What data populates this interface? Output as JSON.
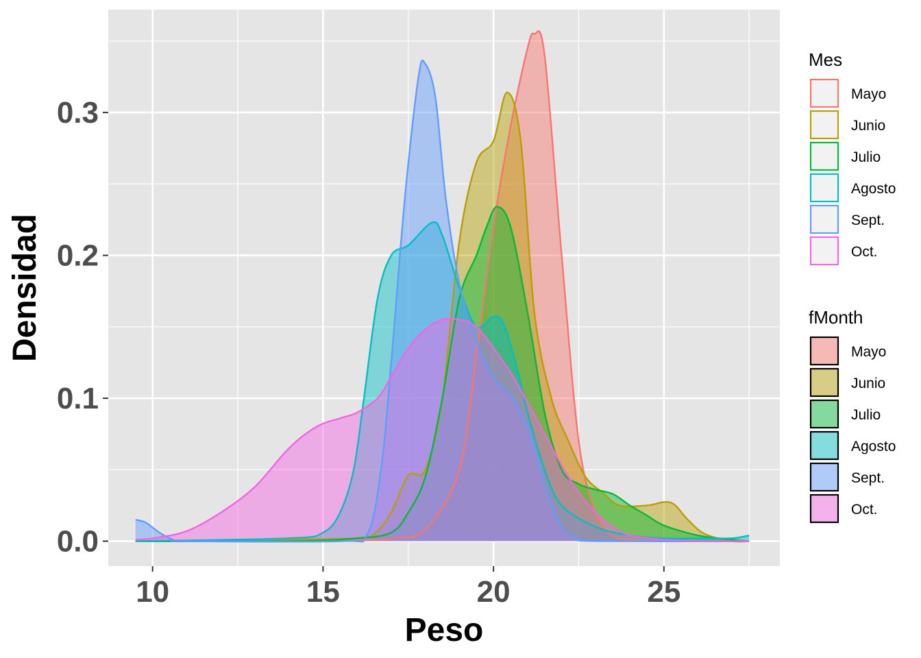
{
  "chart_data": {
    "type": "area",
    "xlabel": "Peso",
    "ylabel": "Densidad",
    "xlim": [
      8.7,
      28.4
    ],
    "ylim": [
      -0.0175,
      0.372
    ],
    "x_ticks": [
      10,
      15,
      20,
      25
    ],
    "x_tick_labels": [
      "10",
      "15",
      "20",
      "25"
    ],
    "y_ticks": [
      0.0,
      0.1,
      0.2,
      0.3
    ],
    "y_tick_labels": [
      "0.0",
      "0.1",
      "0.2",
      "0.3"
    ],
    "grid": true,
    "legend_position": "right",
    "series": [
      {
        "name": "Mayo",
        "color": "#F8766D",
        "points": [
          [
            9.5,
            0
          ],
          [
            13,
            0
          ],
          [
            16,
            0.0005
          ],
          [
            17,
            0.002
          ],
          [
            18,
            0.008
          ],
          [
            19,
            0.05
          ],
          [
            19.5,
            0.13
          ],
          [
            20,
            0.22
          ],
          [
            20.5,
            0.29
          ],
          [
            21,
            0.345
          ],
          [
            21.2,
            0.355
          ],
          [
            21.5,
            0.34
          ],
          [
            22,
            0.2
          ],
          [
            22.5,
            0.07
          ],
          [
            23,
            0.02
          ],
          [
            23.5,
            0.004
          ],
          [
            24,
            0.001
          ],
          [
            25,
            0
          ],
          [
            27.5,
            0
          ]
        ]
      },
      {
        "name": "Junio",
        "color": "#B79F00",
        "points": [
          [
            9.5,
            0
          ],
          [
            13,
            0
          ],
          [
            14,
            0.001
          ],
          [
            16,
            0.002
          ],
          [
            16.5,
            0.005
          ],
          [
            17,
            0.02
          ],
          [
            17.5,
            0.046
          ],
          [
            18,
            0.05
          ],
          [
            18.5,
            0.1
          ],
          [
            19,
            0.21
          ],
          [
            19.5,
            0.265
          ],
          [
            20,
            0.28
          ],
          [
            20.4,
            0.314
          ],
          [
            20.8,
            0.28
          ],
          [
            21.2,
            0.16
          ],
          [
            21.7,
            0.1
          ],
          [
            22.2,
            0.07
          ],
          [
            22.7,
            0.045
          ],
          [
            23.2,
            0.034
          ],
          [
            23.7,
            0.025
          ],
          [
            24.5,
            0.025
          ],
          [
            25.2,
            0.027
          ],
          [
            25.7,
            0.015
          ],
          [
            26.2,
            0.005
          ],
          [
            27,
            0
          ],
          [
            27.5,
            0
          ]
        ]
      },
      {
        "name": "Julio",
        "color": "#00BA38",
        "points": [
          [
            9.5,
            0
          ],
          [
            14,
            0
          ],
          [
            16,
            0.002
          ],
          [
            17,
            0.006
          ],
          [
            17.5,
            0.02
          ],
          [
            18,
            0.045
          ],
          [
            18.5,
            0.1
          ],
          [
            19,
            0.17
          ],
          [
            19.5,
            0.2
          ],
          [
            19.8,
            0.22
          ],
          [
            20.1,
            0.234
          ],
          [
            20.5,
            0.22
          ],
          [
            21,
            0.16
          ],
          [
            21.5,
            0.09
          ],
          [
            22,
            0.05
          ],
          [
            22.5,
            0.04
          ],
          [
            23,
            0.036
          ],
          [
            23.5,
            0.033
          ],
          [
            24,
            0.025
          ],
          [
            24.5,
            0.018
          ],
          [
            25,
            0.011
          ],
          [
            26,
            0.004
          ],
          [
            27,
            0.001
          ],
          [
            27.5,
            0
          ]
        ]
      },
      {
        "name": "Agosto",
        "color": "#00BFC4",
        "points": [
          [
            9.5,
            0
          ],
          [
            14,
            0.002
          ],
          [
            15,
            0.006
          ],
          [
            15.5,
            0.02
          ],
          [
            15.9,
            0.05
          ],
          [
            16.2,
            0.1
          ],
          [
            16.6,
            0.17
          ],
          [
            17,
            0.2
          ],
          [
            17.5,
            0.207
          ],
          [
            18.2,
            0.223
          ],
          [
            18.5,
            0.214
          ],
          [
            19,
            0.177
          ],
          [
            19.5,
            0.15
          ],
          [
            20,
            0.157
          ],
          [
            20.3,
            0.152
          ],
          [
            20.7,
            0.12
          ],
          [
            21,
            0.09
          ],
          [
            21.5,
            0.05
          ],
          [
            22,
            0.025
          ],
          [
            23,
            0.01
          ],
          [
            24,
            0.004
          ],
          [
            25,
            0.002
          ],
          [
            26,
            0.002
          ],
          [
            27,
            0.002
          ],
          [
            27.5,
            0.004
          ]
        ]
      },
      {
        "name": "Sept.",
        "color": "#619CFF",
        "points": [
          [
            9.5,
            0.015
          ],
          [
            9.8,
            0.013
          ],
          [
            10.2,
            0.006
          ],
          [
            10.6,
            0.001
          ],
          [
            11,
            0
          ],
          [
            15.5,
            0
          ],
          [
            16.3,
            0.005
          ],
          [
            16.7,
            0.05
          ],
          [
            17,
            0.125
          ],
          [
            17.4,
            0.24
          ],
          [
            17.8,
            0.325
          ],
          [
            18,
            0.334
          ],
          [
            18.3,
            0.31
          ],
          [
            18.6,
            0.24
          ],
          [
            19,
            0.18
          ],
          [
            19.5,
            0.14
          ],
          [
            20,
            0.115
          ],
          [
            20.5,
            0.102
          ],
          [
            21,
            0.08
          ],
          [
            21.5,
            0.04
          ],
          [
            22,
            0.01
          ],
          [
            22.5,
            0.002
          ],
          [
            23,
            0
          ],
          [
            27.5,
            0
          ]
        ]
      },
      {
        "name": "Oct.",
        "color": "#F564E3",
        "points": [
          [
            9.5,
            0.001
          ],
          [
            10,
            0.002
          ],
          [
            11,
            0.007
          ],
          [
            12,
            0.02
          ],
          [
            13,
            0.038
          ],
          [
            14,
            0.065
          ],
          [
            14.8,
            0.08
          ],
          [
            15.5,
            0.086
          ],
          [
            16,
            0.09
          ],
          [
            16.6,
            0.1
          ],
          [
            17,
            0.115
          ],
          [
            17.5,
            0.135
          ],
          [
            18,
            0.148
          ],
          [
            18.5,
            0.155
          ],
          [
            19,
            0.155
          ],
          [
            19.5,
            0.15
          ],
          [
            20,
            0.135
          ],
          [
            20.5,
            0.118
          ],
          [
            21,
            0.097
          ],
          [
            21.5,
            0.075
          ],
          [
            22,
            0.053
          ],
          [
            22.5,
            0.034
          ],
          [
            23,
            0.02
          ],
          [
            23.5,
            0.01
          ],
          [
            24,
            0.004
          ],
          [
            25,
            0.001
          ],
          [
            26,
            0
          ],
          [
            27.5,
            0
          ]
        ]
      }
    ],
    "legends": [
      {
        "title": "Mes",
        "style": "outline",
        "entries": [
          "Mayo",
          "Junio",
          "Julio",
          "Agosto",
          "Sept.",
          "Oct."
        ]
      },
      {
        "title": "fMonth",
        "style": "filled",
        "entries": [
          "Mayo",
          "Junio",
          "Julio",
          "Agosto",
          "Sept.",
          "Oct."
        ]
      }
    ],
    "colors": {
      "panel_background": "#E5E5E5",
      "grid_line": "#FFFFFF",
      "fill_opacity": 0.45
    }
  }
}
